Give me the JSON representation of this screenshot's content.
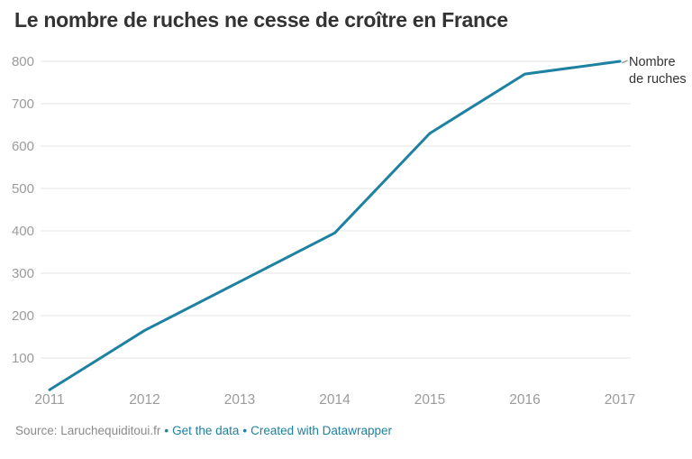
{
  "header": {
    "title": "Le nombre de ruches ne cesse de croître en France"
  },
  "chart_data": {
    "type": "line",
    "title": "Le nombre de ruches ne cesse de croître en France",
    "x": [
      2011,
      2012,
      2013,
      2014,
      2015,
      2016,
      2017
    ],
    "x_tick_labels": [
      "2011",
      "2012",
      "2013",
      "2014",
      "2015",
      "2016",
      "2017"
    ],
    "series": [
      {
        "name": "Nombre de ruches",
        "values": [
          25,
          165,
          280,
          395,
          630,
          770,
          800
        ]
      }
    ],
    "xlabel": "",
    "ylabel": "",
    "ylim": [
      0,
      800
    ],
    "yticks": [
      100,
      200,
      300,
      400,
      500,
      600,
      700,
      800
    ],
    "grid": true,
    "legend_position": "direct-label-at-line-end"
  },
  "annotation": {
    "series_label": "Nombre de ruches"
  },
  "footer": {
    "source_text": "Source: Laruchequiditoui.fr",
    "separator": "•",
    "links": [
      {
        "label": "Get the data"
      },
      {
        "label": "Created with Datawrapper"
      }
    ]
  },
  "colors": {
    "line": "#1d81a2",
    "title": "#333333",
    "axis_text": "#9b9b9b",
    "grid": "#e4e4e4",
    "footer_text": "#8a8a8a",
    "link": "#1d81a2",
    "series_label_text": "#333333",
    "background": "#ffffff"
  }
}
